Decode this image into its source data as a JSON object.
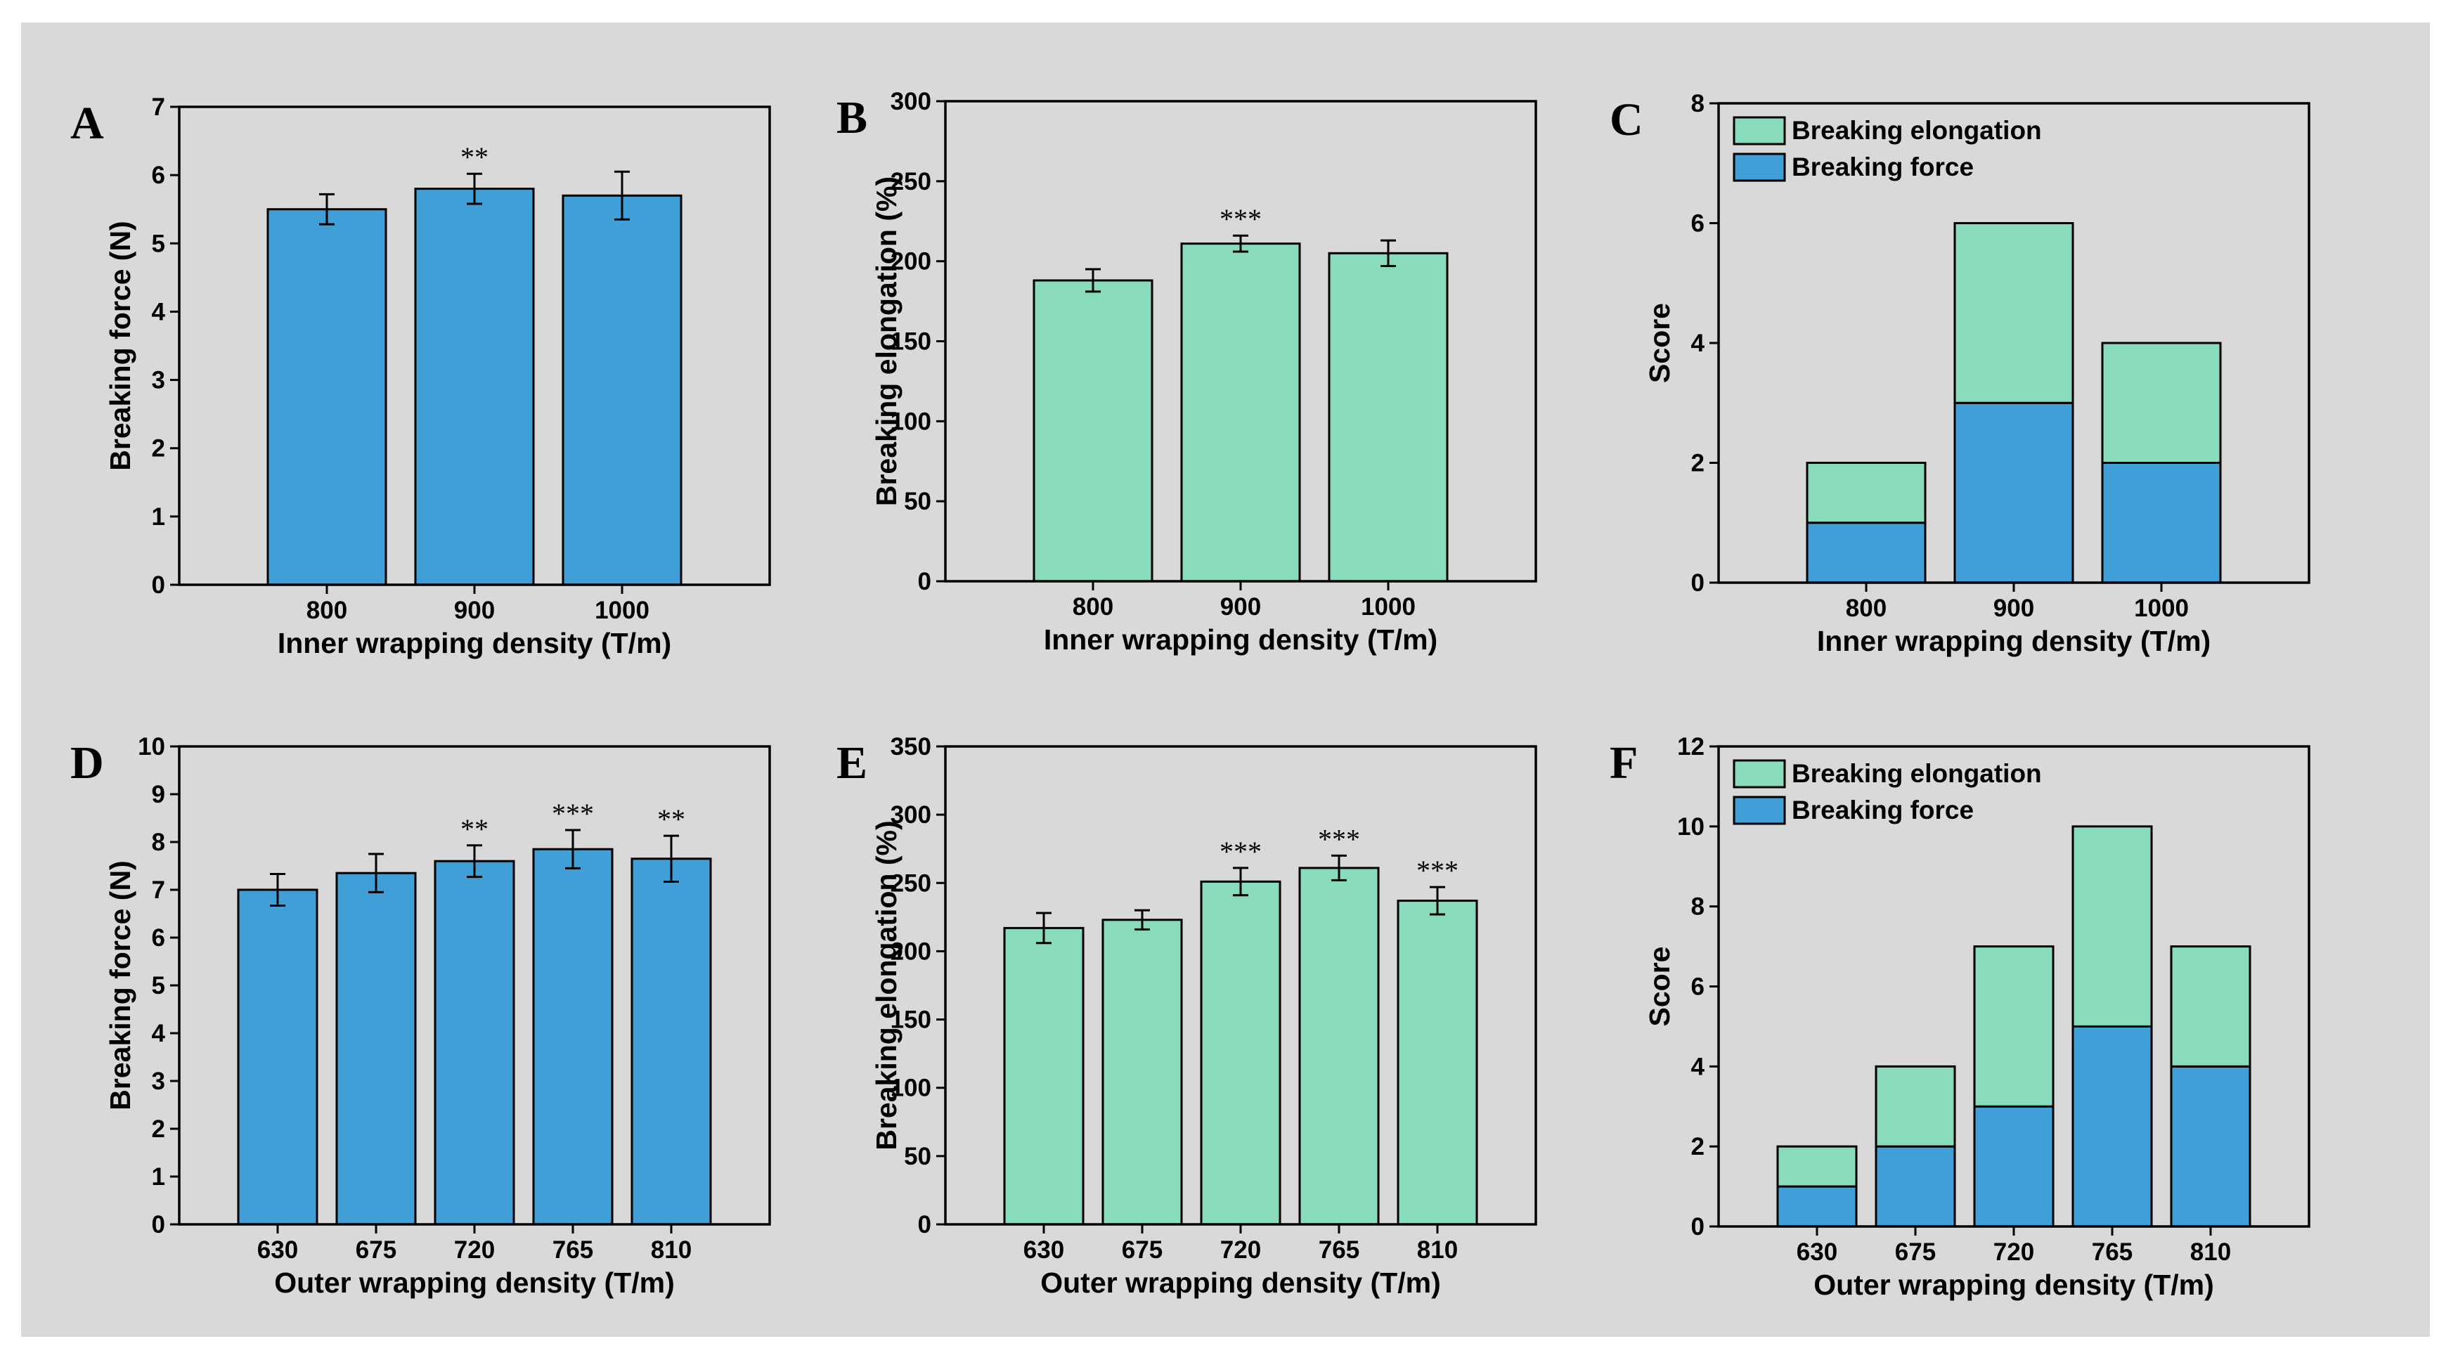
{
  "colors": {
    "figure_background": "#d9d9d9",
    "force_bar": "#419fd7",
    "elongation_bar": "#88dcbc",
    "outline": "#000000"
  },
  "chart_data": [
    {
      "panel": "A",
      "type": "bar",
      "categories": [
        "800",
        "900",
        "1000"
      ],
      "values": [
        5.5,
        5.8,
        5.7
      ],
      "errors": [
        0.22,
        0.22,
        0.35
      ],
      "significance": [
        "",
        "**",
        ""
      ],
      "xlabel": "Inner wrapping density (T/m)",
      "ylabel": "Breaking force (N)",
      "ylim": [
        0,
        7
      ],
      "yticks": [
        0,
        1,
        2,
        3,
        4,
        5,
        6,
        7
      ],
      "color": "#419fd7"
    },
    {
      "panel": "B",
      "type": "bar",
      "categories": [
        "800",
        "900",
        "1000"
      ],
      "values": [
        188,
        211,
        205
      ],
      "errors": [
        7,
        5,
        8
      ],
      "significance": [
        "",
        "***",
        ""
      ],
      "xlabel": "Inner wrapping density (T/m)",
      "ylabel": "Breaking elongation (%)",
      "ylim": [
        0,
        300
      ],
      "yticks": [
        0,
        50,
        100,
        150,
        200,
        250,
        300
      ],
      "color": "#88dcbc"
    },
    {
      "panel": "C",
      "type": "bar",
      "stacked": true,
      "categories": [
        "800",
        "900",
        "1000"
      ],
      "series": [
        {
          "name": "Breaking force",
          "values": [
            1,
            3,
            2
          ],
          "color": "#419fd7"
        },
        {
          "name": "Breaking elongation",
          "values": [
            1,
            3,
            2
          ],
          "color": "#88dcbc"
        }
      ],
      "legend": [
        "Breaking elongation",
        "Breaking force"
      ],
      "legend_position": "top-left",
      "xlabel": "Inner wrapping density (T/m)",
      "ylabel": "Score",
      "ylim": [
        0,
        8
      ],
      "yticks": [
        0,
        2,
        4,
        6,
        8
      ]
    },
    {
      "panel": "D",
      "type": "bar",
      "categories": [
        "630",
        "675",
        "720",
        "765",
        "810"
      ],
      "values": [
        7.0,
        7.35,
        7.6,
        7.85,
        7.65
      ],
      "errors": [
        0.33,
        0.4,
        0.33,
        0.4,
        0.48
      ],
      "significance": [
        "",
        "",
        "**",
        "***",
        "**"
      ],
      "xlabel": "Outer wrapping density (T/m)",
      "ylabel": "Breaking force (N)",
      "ylim": [
        0,
        10
      ],
      "yticks": [
        0,
        1,
        2,
        3,
        4,
        5,
        6,
        7,
        8,
        9,
        10
      ],
      "color": "#419fd7"
    },
    {
      "panel": "E",
      "type": "bar",
      "categories": [
        "630",
        "675",
        "720",
        "765",
        "810"
      ],
      "values": [
        217,
        223,
        251,
        261,
        237
      ],
      "errors": [
        11,
        7,
        10,
        9,
        10
      ],
      "significance": [
        "",
        "",
        "***",
        "***",
        "***"
      ],
      "xlabel": "Outer wrapping density (T/m)",
      "ylabel": "Breaking elongation (%)",
      "ylim": [
        0,
        350
      ],
      "yticks": [
        0,
        50,
        100,
        150,
        200,
        250,
        300,
        350
      ],
      "color": "#88dcbc"
    },
    {
      "panel": "F",
      "type": "bar",
      "stacked": true,
      "categories": [
        "630",
        "675",
        "720",
        "765",
        "810"
      ],
      "series": [
        {
          "name": "Breaking force",
          "values": [
            1,
            2,
            3,
            5,
            4
          ],
          "color": "#419fd7"
        },
        {
          "name": "Breaking elongation",
          "values": [
            1,
            2,
            4,
            5,
            3
          ],
          "color": "#88dcbc"
        }
      ],
      "legend": [
        "Breaking elongation",
        "Breaking force"
      ],
      "legend_position": "top-left",
      "xlabel": "Outer wrapping density (T/m)",
      "ylabel": "Score",
      "ylim": [
        0,
        12
      ],
      "yticks": [
        0,
        2,
        4,
        6,
        8,
        10,
        12
      ]
    }
  ]
}
